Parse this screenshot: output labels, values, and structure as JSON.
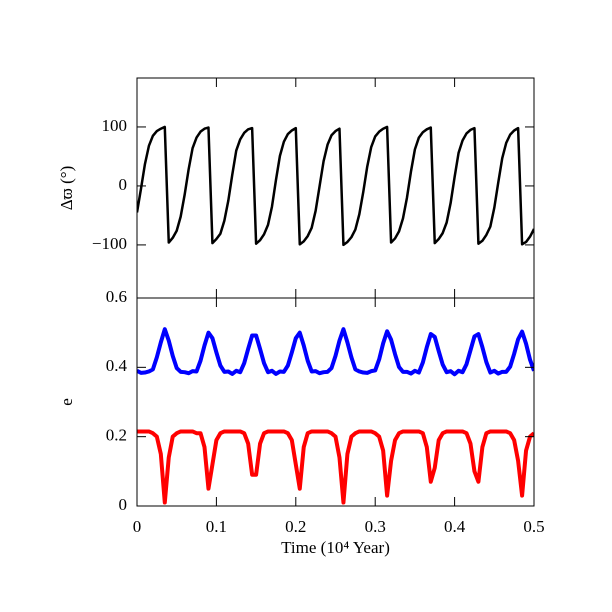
{
  "chart_data": [
    {
      "type": "line",
      "y_label": "Δϖ (°)",
      "x": [
        0,
        0.005,
        0.01,
        0.015,
        0.02,
        0.025,
        0.03,
        0.035,
        0.04,
        0.045,
        0.05,
        0.055,
        0.06,
        0.065,
        0.07,
        0.075,
        0.08,
        0.085,
        0.09,
        0.095,
        0.1,
        0.105,
        0.11,
        0.115,
        0.12,
        0.125,
        0.13,
        0.135,
        0.14,
        0.145,
        0.15,
        0.155,
        0.16,
        0.165,
        0.17,
        0.175,
        0.18,
        0.185,
        0.19,
        0.195,
        0.2,
        0.205,
        0.21,
        0.215,
        0.22,
        0.225,
        0.23,
        0.235,
        0.24,
        0.245,
        0.25,
        0.255,
        0.26,
        0.265,
        0.27,
        0.275,
        0.28,
        0.285,
        0.29,
        0.295,
        0.3,
        0.305,
        0.31,
        0.315,
        0.32,
        0.325,
        0.33,
        0.335,
        0.34,
        0.345,
        0.35,
        0.355,
        0.36,
        0.365,
        0.37,
        0.375,
        0.38,
        0.385,
        0.39,
        0.395,
        0.4,
        0.405,
        0.41,
        0.415,
        0.42,
        0.425,
        0.43,
        0.435,
        0.44,
        0.445,
        0.45,
        0.455,
        0.46,
        0.465,
        0.47,
        0.475,
        0.48,
        0.485,
        0.49,
        0.495,
        0.5
      ],
      "values": [
        -45,
        -5,
        37,
        68,
        85,
        93,
        97,
        100,
        -96,
        -88,
        -76,
        -52,
        -15,
        28,
        64,
        82,
        92,
        97,
        99,
        -97,
        -90,
        -81,
        -59,
        -25,
        19,
        60,
        79,
        90,
        96,
        98,
        -98,
        -92,
        -82,
        -66,
        -35,
        10,
        51,
        75,
        88,
        94,
        98,
        -99,
        -94,
        -85,
        -71,
        -42,
        0,
        42,
        70,
        86,
        93,
        97,
        -100,
        -95,
        -87,
        -74,
        -48,
        -10,
        33,
        66,
        84,
        92,
        97,
        100,
        -96,
        -89,
        -77,
        -55,
        -20,
        24,
        62,
        82,
        91,
        96,
        99,
        -97,
        -90,
        -80,
        -62,
        -29,
        15,
        56,
        77,
        89,
        95,
        98,
        -98,
        -93,
        -83,
        -69,
        -37,
        6,
        47,
        73,
        87,
        94,
        98,
        -99,
        -95,
        -86,
        -73
      ],
      "color": "#000000",
      "xlim": [
        0,
        0.5
      ],
      "xticks": [
        0,
        0.1,
        0.2,
        0.3,
        0.4,
        0.5
      ],
      "ylim": [
        -190,
        183
      ],
      "yticks": [
        {
          "value": -100,
          "label": "−100"
        },
        0,
        100
      ]
    },
    {
      "type": "line",
      "x_label": "Time (10⁴ Year)",
      "y_label": "e",
      "x": [
        0,
        0.005,
        0.01,
        0.015,
        0.02,
        0.025,
        0.03,
        0.035,
        0.04,
        0.045,
        0.05,
        0.055,
        0.06,
        0.065,
        0.07,
        0.075,
        0.08,
        0.085,
        0.09,
        0.095,
        0.1,
        0.105,
        0.11,
        0.115,
        0.12,
        0.125,
        0.13,
        0.135,
        0.14,
        0.145,
        0.15,
        0.155,
        0.16,
        0.165,
        0.17,
        0.175,
        0.18,
        0.185,
        0.19,
        0.195,
        0.2,
        0.205,
        0.21,
        0.215,
        0.22,
        0.225,
        0.23,
        0.235,
        0.24,
        0.245,
        0.25,
        0.255,
        0.26,
        0.265,
        0.27,
        0.275,
        0.28,
        0.285,
        0.29,
        0.295,
        0.3,
        0.305,
        0.31,
        0.315,
        0.32,
        0.325,
        0.33,
        0.335,
        0.34,
        0.345,
        0.35,
        0.355,
        0.36,
        0.365,
        0.37,
        0.375,
        0.38,
        0.385,
        0.39,
        0.395,
        0.4,
        0.405,
        0.41,
        0.415,
        0.42,
        0.425,
        0.43,
        0.435,
        0.44,
        0.445,
        0.45,
        0.455,
        0.46,
        0.465,
        0.47,
        0.475,
        0.48,
        0.485,
        0.49,
        0.495,
        0.5
      ],
      "series": [
        {
          "color": "#0000ff",
          "values": [
            0.39,
            0.384,
            0.385,
            0.388,
            0.394,
            0.429,
            0.472,
            0.51,
            0.477,
            0.433,
            0.398,
            0.387,
            0.386,
            0.383,
            0.389,
            0.388,
            0.419,
            0.463,
            0.5,
            0.484,
            0.443,
            0.405,
            0.387,
            0.388,
            0.381,
            0.39,
            0.386,
            0.412,
            0.453,
            0.492,
            0.492,
            0.453,
            0.412,
            0.386,
            0.39,
            0.381,
            0.388,
            0.387,
            0.405,
            0.443,
            0.484,
            0.5,
            0.463,
            0.419,
            0.388,
            0.389,
            0.383,
            0.386,
            0.387,
            0.398,
            0.433,
            0.477,
            0.51,
            0.472,
            0.429,
            0.394,
            0.388,
            0.385,
            0.384,
            0.389,
            0.391,
            0.423,
            0.469,
            0.504,
            0.48,
            0.438,
            0.401,
            0.387,
            0.387,
            0.382,
            0.39,
            0.385,
            0.414,
            0.458,
            0.496,
            0.488,
            0.447,
            0.408,
            0.386,
            0.389,
            0.38,
            0.39,
            0.386,
            0.409,
            0.449,
            0.489,
            0.496,
            0.458,
            0.415,
            0.385,
            0.39,
            0.382,
            0.387,
            0.387,
            0.402,
            0.439,
            0.481,
            0.503,
            0.468,
            0.422,
            0.39
          ]
        },
        {
          "color": "#ff0000",
          "values": [
            0.215,
            0.215,
            0.215,
            0.215,
            0.21,
            0.2,
            0.15,
            0.01,
            0.14,
            0.2,
            0.21,
            0.215,
            0.215,
            0.215,
            0.215,
            0.21,
            0.21,
            0.17,
            0.05,
            0.12,
            0.19,
            0.21,
            0.215,
            0.215,
            0.215,
            0.215,
            0.215,
            0.21,
            0.18,
            0.09,
            0.09,
            0.18,
            0.21,
            0.215,
            0.215,
            0.215,
            0.215,
            0.215,
            0.21,
            0.19,
            0.12,
            0.05,
            0.17,
            0.21,
            0.215,
            0.215,
            0.215,
            0.215,
            0.215,
            0.21,
            0.2,
            0.14,
            0.01,
            0.15,
            0.2,
            0.21,
            0.215,
            0.215,
            0.215,
            0.215,
            0.21,
            0.2,
            0.16,
            0.03,
            0.13,
            0.19,
            0.21,
            0.215,
            0.215,
            0.215,
            0.215,
            0.215,
            0.21,
            0.17,
            0.07,
            0.11,
            0.19,
            0.21,
            0.215,
            0.215,
            0.215,
            0.215,
            0.215,
            0.21,
            0.18,
            0.1,
            0.07,
            0.17,
            0.21,
            0.215,
            0.215,
            0.215,
            0.215,
            0.215,
            0.21,
            0.19,
            0.13,
            0.03,
            0.16,
            0.2,
            0.21
          ]
        }
      ],
      "xlim": [
        0,
        0.5
      ],
      "xticks": [
        0,
        0.1,
        0.2,
        0.3,
        0.4,
        0.5
      ],
      "ylim": [
        0,
        0.6
      ],
      "yticks": [
        0,
        0.2,
        0.4,
        0.6
      ]
    }
  ]
}
